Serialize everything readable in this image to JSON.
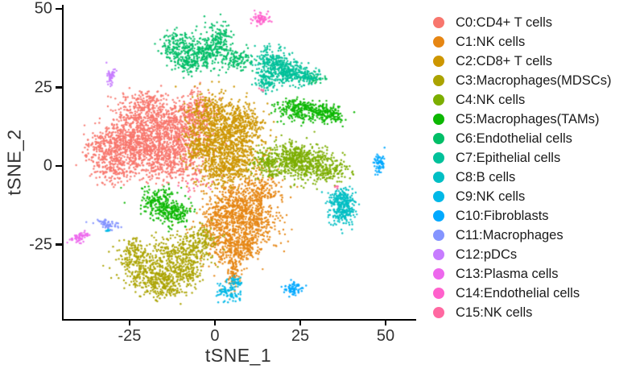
{
  "chart_data": {
    "type": "scatter",
    "title": "",
    "xlabel": "tSNE_1",
    "ylabel": "tSNE_2",
    "grid": false,
    "legend_position": "right",
    "axes": {
      "x": {
        "ticks": [
          -25,
          0,
          25,
          50
        ],
        "lim": [
          -44.8,
          58.5
        ]
      },
      "y": {
        "ticks": [
          50,
          25,
          0,
          -25
        ],
        "lim": [
          -48.7,
          51.3
        ]
      }
    },
    "clusters": [
      {
        "id": "C0",
        "label": "C0:CD4+ T cells",
        "color": "#F8766D",
        "blobs": [
          [
            -22,
            14,
            5.5,
            4,
            450
          ],
          [
            -27,
            6,
            4.5,
            3.5,
            380
          ],
          [
            -17,
            6,
            5.5,
            4.5,
            480
          ],
          [
            -10,
            13,
            4.5,
            4,
            350
          ],
          [
            -12,
            1,
            5,
            3,
            300
          ],
          [
            -30,
            -1,
            3.5,
            2.5,
            150
          ],
          [
            -6,
            18,
            3,
            2.8,
            160
          ],
          [
            -34,
            6,
            2.5,
            2.5,
            80
          ],
          [
            -20,
            20,
            3,
            2,
            100
          ]
        ]
      },
      {
        "id": "C1",
        "label": "C1:NK cells",
        "color": "#E68613",
        "blobs": [
          [
            7,
            -12,
            4.5,
            3.5,
            400
          ],
          [
            10,
            -19,
            4.5,
            4,
            400
          ],
          [
            4,
            -25,
            3.5,
            3,
            220
          ],
          [
            14,
            -7,
            3,
            2.5,
            130
          ],
          [
            1,
            -17,
            3,
            3,
            150
          ],
          [
            8,
            -27,
            2.5,
            2,
            100
          ],
          [
            6,
            -32,
            1.5,
            2,
            60
          ],
          [
            5,
            -36,
            1,
            1.5,
            40
          ]
        ]
      },
      {
        "id": "C2",
        "label": "C2:CD8+ T cells",
        "color": "#CD9600",
        "blobs": [
          [
            0,
            16,
            4,
            3.8,
            350
          ],
          [
            4,
            8,
            5,
            4.5,
            450
          ],
          [
            -3,
            6,
            3.5,
            3.5,
            250
          ],
          [
            7,
            1,
            4,
            3,
            250
          ],
          [
            2,
            -3,
            3.5,
            2.5,
            150
          ],
          [
            9,
            14,
            3,
            3,
            200
          ]
        ]
      },
      {
        "id": "C3",
        "label": "C3:Macrophages(MDSCs)",
        "color": "#ABA300",
        "blobs": [
          [
            -19,
            -34,
            4,
            3.5,
            330
          ],
          [
            -10,
            -28,
            4,
            3,
            300
          ],
          [
            -4,
            -23,
            2.5,
            2,
            110
          ],
          [
            -14,
            -38,
            3,
            2.2,
            150
          ],
          [
            -24,
            -28,
            2.5,
            2.5,
            120
          ],
          [
            -8,
            -34,
            2.5,
            2,
            90
          ]
        ]
      },
      {
        "id": "C4",
        "label": "C4:NK cells",
        "color": "#7CAE00",
        "blobs": [
          [
            16,
            1,
            2.5,
            2.5,
            150
          ],
          [
            22,
            3,
            3.5,
            2.8,
            280
          ],
          [
            28,
            0.5,
            3.5,
            2.8,
            280
          ],
          [
            34,
            -1.5,
            2.5,
            2,
            120
          ]
        ]
      },
      {
        "id": "C5",
        "label": "C5:Macrophages(TAMs)",
        "color": "#0CB702",
        "blobs": [
          [
            24,
            18,
            3,
            1.7,
            190
          ],
          [
            30,
            17,
            2.8,
            1.5,
            150
          ],
          [
            35,
            16,
            1.8,
            1.2,
            70
          ],
          [
            -16,
            -12,
            3,
            2.4,
            230
          ],
          [
            -11,
            -15.5,
            2.2,
            1.8,
            120
          ]
        ]
      },
      {
        "id": "C6",
        "label": "C6:Endothelial cells",
        "color": "#00BE67",
        "blobs": [
          [
            -11,
            38,
            2.4,
            2.8,
            180
          ],
          [
            -4,
            36,
            3,
            2.4,
            200
          ],
          [
            1,
            40,
            2,
            3,
            150
          ],
          [
            6,
            34,
            2.6,
            1.8,
            130
          ],
          [
            -8,
            32.5,
            2,
            1.4,
            90
          ],
          [
            28.5,
            28,
            1.8,
            0.8,
            40
          ]
        ]
      },
      {
        "id": "C7",
        "label": "C7:Epithelial cells",
        "color": "#00C19A",
        "blobs": [
          [
            17,
            33,
            2.4,
            2.8,
            240
          ],
          [
            21,
            30,
            2.8,
            1.8,
            200
          ],
          [
            26,
            28.5,
            2.4,
            1.2,
            110
          ],
          [
            15,
            27,
            1.4,
            2,
            90
          ]
        ]
      },
      {
        "id": "C8",
        "label": "C8:B cells",
        "color": "#00BFC4",
        "blobs": [
          [
            37.5,
            -10.5,
            2,
            1.8,
            180
          ],
          [
            37.5,
            -15,
            1.9,
            1.9,
            150
          ]
        ]
      },
      {
        "id": "C9",
        "label": "C9:NK cells",
        "color": "#00B8E7",
        "blobs": [
          [
            4,
            -40,
            1.7,
            1.4,
            85,
            -40
          ],
          [
            6.5,
            -36.5,
            0.9,
            1,
            40
          ],
          [
            -31.3,
            -20.5,
            0.4,
            0.4,
            8
          ]
        ]
      },
      {
        "id": "C10",
        "label": "C10:Fibroblasts",
        "color": "#00A9FF",
        "blobs": [
          [
            23,
            -39,
            1.5,
            1.1,
            70
          ],
          [
            48.3,
            0.3,
            0.9,
            1.6,
            65
          ]
        ]
      },
      {
        "id": "C11",
        "label": "C11:Macrophages",
        "color": "#8494FF",
        "blobs": [
          [
            -31.5,
            -18.5,
            1.9,
            0.7,
            60,
            -12
          ]
        ]
      },
      {
        "id": "C12",
        "label": "C12:pDCs",
        "color": "#C77CFF",
        "blobs": [
          [
            -30.5,
            28.8,
            0.6,
            1.4,
            45
          ]
        ]
      },
      {
        "id": "C13",
        "label": "C13:Plasma cells",
        "color": "#ED68ED",
        "blobs": [
          [
            -39.5,
            -22.5,
            1.4,
            0.8,
            55,
            20
          ]
        ]
      },
      {
        "id": "C14",
        "label": "C14:Endothelial cells",
        "color": "#FF61CC",
        "blobs": [
          [
            13.5,
            47,
            1.4,
            0.9,
            60
          ]
        ]
      },
      {
        "id": "C15",
        "label": "C15:NK cells",
        "color": "#FF68A1",
        "blobs": [
          [
            -5.5,
            -6,
            2.2,
            1.8,
            16
          ],
          [
            36,
            -6.8,
            0.4,
            0.4,
            5
          ],
          [
            14,
            24.5,
            0.5,
            0.4,
            5
          ]
        ]
      }
    ]
  }
}
